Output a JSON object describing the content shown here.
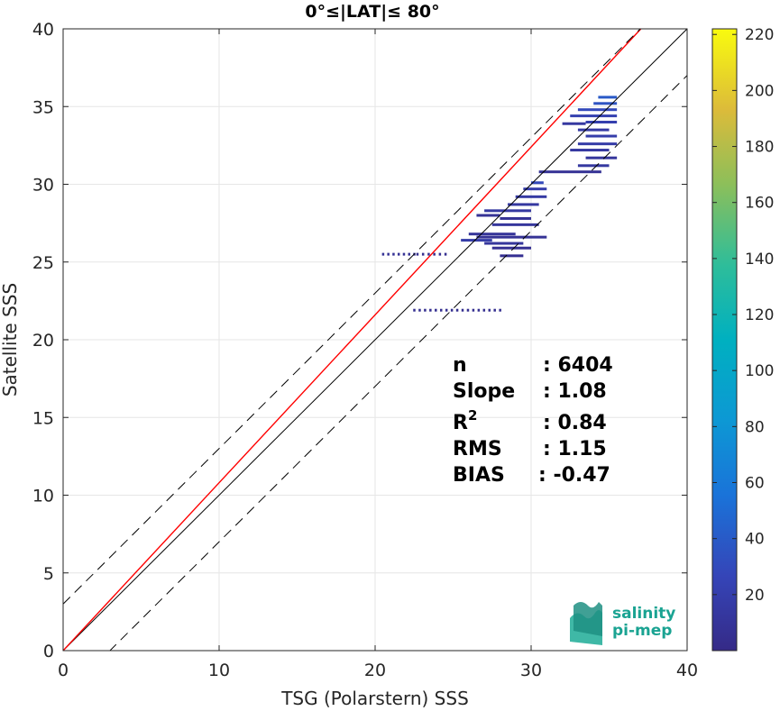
{
  "chart_data": {
    "type": "heatmap",
    "title": "0°≤|LAT|≤ 80°",
    "xlabel": "TSG (Polarstern) SSS",
    "ylabel": "Satellite SSS",
    "xlim": [
      0,
      40
    ],
    "ylim": [
      0,
      40
    ],
    "xticks": [
      0,
      10,
      20,
      30,
      40
    ],
    "yticks": [
      0,
      5,
      10,
      15,
      20,
      25,
      30,
      35,
      40
    ],
    "grid": true,
    "lines": [
      {
        "name": "identity",
        "color": "#000000",
        "style": "solid",
        "slope": 1,
        "intercept": 0
      },
      {
        "name": "regression",
        "color": "#ff0000",
        "style": "solid",
        "slope": 1.08,
        "intercept": 0
      },
      {
        "name": "upper-bound",
        "color": "#000000",
        "style": "dashed",
        "slope": 1,
        "intercept": 3
      },
      {
        "name": "lower-bound",
        "color": "#000000",
        "style": "dashed",
        "slope": 1,
        "intercept": -3
      }
    ],
    "colorbar": {
      "min": 0,
      "max": 222,
      "ticks": [
        20,
        40,
        60,
        80,
        100,
        120,
        140,
        160,
        180,
        200,
        220
      ]
    },
    "density_segments": [
      {
        "x0": 20.5,
        "x1": 22.5,
        "y": 25.5,
        "c": 8,
        "dotted": true
      },
      {
        "x0": 22.7,
        "x1": 24.5,
        "y": 25.5,
        "c": 5,
        "dotted": true
      },
      {
        "x0": 22.5,
        "x1": 28.0,
        "y": 21.9,
        "c": 5,
        "dotted": true
      },
      {
        "x0": 25.5,
        "x1": 27.5,
        "y": 26.4,
        "c": 18
      },
      {
        "x0": 26.0,
        "x1": 29.0,
        "y": 26.8,
        "c": 10
      },
      {
        "x0": 27.0,
        "x1": 29.5,
        "y": 26.2,
        "c": 12
      },
      {
        "x0": 26.5,
        "x1": 31.0,
        "y": 26.6,
        "c": 8
      },
      {
        "x0": 27.5,
        "x1": 30.0,
        "y": 25.9,
        "c": 6
      },
      {
        "x0": 28.0,
        "x1": 29.5,
        "y": 25.4,
        "c": 6
      },
      {
        "x0": 26.5,
        "x1": 28.0,
        "y": 28.0,
        "c": 8
      },
      {
        "x0": 27.5,
        "x1": 30.5,
        "y": 27.4,
        "c": 12
      },
      {
        "x0": 27.0,
        "x1": 30.0,
        "y": 28.3,
        "c": 15
      },
      {
        "x0": 28.5,
        "x1": 30.5,
        "y": 28.7,
        "c": 14
      },
      {
        "x0": 29.0,
        "x1": 31.0,
        "y": 29.2,
        "c": 16
      },
      {
        "x0": 29.5,
        "x1": 31.0,
        "y": 29.7,
        "c": 20
      },
      {
        "x0": 30.0,
        "x1": 30.8,
        "y": 30.1,
        "c": 30
      },
      {
        "x0": 28.0,
        "x1": 30.0,
        "y": 27.8,
        "c": 8
      },
      {
        "x0": 30.5,
        "x1": 34.5,
        "y": 30.8,
        "c": 8
      },
      {
        "x0": 33.0,
        "x1": 35.0,
        "y": 31.2,
        "c": 14
      },
      {
        "x0": 33.5,
        "x1": 35.5,
        "y": 31.7,
        "c": 12
      },
      {
        "x0": 32.5,
        "x1": 35.0,
        "y": 32.2,
        "c": 14
      },
      {
        "x0": 33.0,
        "x1": 35.5,
        "y": 32.6,
        "c": 18
      },
      {
        "x0": 33.5,
        "x1": 35.5,
        "y": 33.1,
        "c": 20
      },
      {
        "x0": 33.0,
        "x1": 35.0,
        "y": 33.5,
        "c": 16
      },
      {
        "x0": 32.0,
        "x1": 33.5,
        "y": 33.9,
        "c": 14
      },
      {
        "x0": 33.5,
        "x1": 35.5,
        "y": 34.0,
        "c": 22
      },
      {
        "x0": 32.5,
        "x1": 35.5,
        "y": 34.4,
        "c": 24
      },
      {
        "x0": 33.0,
        "x1": 35.5,
        "y": 34.8,
        "c": 30
      },
      {
        "x0": 34.0,
        "x1": 35.5,
        "y": 35.2,
        "c": 36
      },
      {
        "x0": 34.3,
        "x1": 35.5,
        "y": 35.6,
        "c": 40
      }
    ]
  },
  "stats": {
    "n_label": "n",
    "n_value": ": 6404",
    "slope_label": "Slope",
    "slope_value": ": 1.08",
    "r2_label": "R",
    "r2_sup": "2",
    "r2_value": ": 0.84",
    "rms_label": "RMS",
    "rms_value": ": 1.15",
    "bias_label": "BIAS",
    "bias_value": ": -0.47"
  },
  "logo": {
    "line1": "salinity",
    "line2": "pi-mep",
    "color": "#1aa392"
  }
}
